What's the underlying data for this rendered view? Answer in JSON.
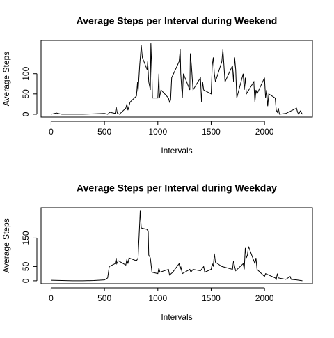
{
  "chart_data": [
    {
      "type": "line",
      "title": "Average Steps per Interval during Weekend",
      "xlabel": "Intervals",
      "ylabel": "Average Steps",
      "xlim": [
        -94.2,
        2449.2
      ],
      "ylim": [
        -7,
        182
      ],
      "xticks": [
        0,
        500,
        1000,
        1500,
        2000
      ],
      "yticks": [
        0,
        50,
        100
      ],
      "series": [
        {
          "name": "Weekend",
          "color": "#000000",
          "x": [
            0,
            50,
            100,
            200,
            300,
            400,
            500,
            530,
            550,
            600,
            610,
            620,
            640,
            700,
            710,
            720,
            740,
            800,
            810,
            815,
            830,
            845,
            855,
            900,
            905,
            915,
            930,
            935,
            945,
            950,
            1000,
            1010,
            1015,
            1030,
            1100,
            1110,
            1120,
            1130,
            1200,
            1210,
            1215,
            1230,
            1240,
            1300,
            1305,
            1315,
            1330,
            1400,
            1410,
            1420,
            1430,
            1500,
            1510,
            1520,
            1530,
            1540,
            1600,
            1610,
            1620,
            1630,
            1700,
            1710,
            1720,
            1730,
            1740,
            1800,
            1810,
            1820,
            1830,
            1900,
            1910,
            1920,
            1930,
            2000,
            2010,
            2020,
            2030,
            2040,
            2100,
            2110,
            2120,
            2130,
            2140,
            2200,
            2300,
            2310,
            2320,
            2335,
            2355
          ],
          "values": [
            0,
            3,
            0,
            0,
            0,
            1,
            2,
            0,
            5,
            2,
            18,
            3,
            0,
            15,
            25,
            10,
            30,
            45,
            80,
            55,
            120,
            170,
            140,
            110,
            130,
            80,
            60,
            175,
            100,
            40,
            40,
            100,
            40,
            60,
            40,
            30,
            35,
            90,
            130,
            160,
            100,
            40,
            100,
            60,
            150,
            120,
            60,
            90,
            30,
            80,
            60,
            50,
            120,
            140,
            100,
            80,
            130,
            160,
            120,
            80,
            120,
            80,
            140,
            110,
            40,
            100,
            60,
            90,
            50,
            80,
            30,
            60,
            50,
            90,
            40,
            60,
            20,
            50,
            40,
            10,
            5,
            15,
            0,
            2,
            15,
            5,
            0,
            8,
            0
          ]
        }
      ]
    },
    {
      "type": "line",
      "title": "Average Steps per Interval during Weekday",
      "xlabel": "Intervals",
      "ylabel": "Average Steps",
      "xlim": [
        -94.2,
        2449.2
      ],
      "ylim": [
        -10,
        256
      ],
      "xticks": [
        0,
        500,
        1000,
        1500,
        2000
      ],
      "yticks": [
        0,
        50,
        150
      ],
      "series": [
        {
          "name": "Weekday",
          "color": "#000000",
          "x": [
            0,
            100,
            200,
            300,
            400,
            500,
            530,
            545,
            600,
            610,
            615,
            630,
            700,
            710,
            720,
            730,
            800,
            815,
            830,
            835,
            845,
            900,
            905,
            910,
            915,
            930,
            945,
            1000,
            1010,
            1020,
            1100,
            1110,
            1140,
            1200,
            1210,
            1215,
            1230,
            1300,
            1310,
            1330,
            1400,
            1430,
            1440,
            1500,
            1510,
            1520,
            1530,
            1540,
            1600,
            1700,
            1710,
            1720,
            1730,
            1800,
            1810,
            1820,
            1830,
            1840,
            1850,
            1900,
            1910,
            1920,
            1930,
            2000,
            2010,
            2100,
            2110,
            2120,
            2130,
            2200,
            2240,
            2250,
            2300,
            2355
          ],
          "values": [
            2,
            1,
            0,
            0,
            1,
            3,
            10,
            50,
            60,
            80,
            60,
            70,
            55,
            75,
            60,
            80,
            70,
            80,
            200,
            245,
            185,
            180,
            175,
            175,
            90,
            80,
            30,
            25,
            45,
            30,
            40,
            20,
            30,
            60,
            40,
            50,
            25,
            40,
            30,
            40,
            35,
            50,
            30,
            40,
            60,
            50,
            95,
            65,
            50,
            40,
            70,
            50,
            35,
            60,
            40,
            115,
            80,
            90,
            120,
            70,
            60,
            80,
            40,
            15,
            25,
            10,
            5,
            25,
            10,
            5,
            15,
            5,
            3,
            0
          ]
        }
      ]
    }
  ]
}
